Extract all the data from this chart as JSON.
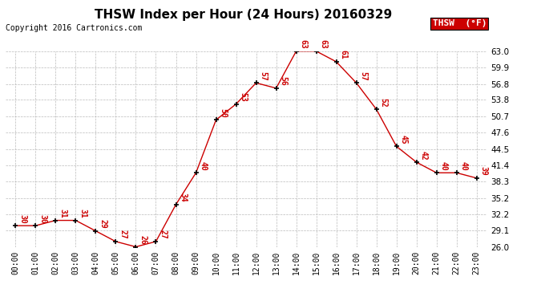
{
  "title": "THSW Index per Hour (24 Hours) 20160329",
  "copyright": "Copyright 2016 Cartronics.com",
  "legend_label": "THSW  (°F)",
  "hours": [
    0,
    1,
    2,
    3,
    4,
    5,
    6,
    7,
    8,
    9,
    10,
    11,
    12,
    13,
    14,
    15,
    16,
    17,
    18,
    19,
    20,
    21,
    22,
    23
  ],
  "values": [
    30,
    30,
    31,
    31,
    29,
    27,
    26,
    27,
    34,
    40,
    50,
    53,
    57,
    56,
    63,
    63,
    61,
    57,
    52,
    45,
    42,
    40,
    40,
    39
  ],
  "ylim": [
    26.0,
    63.0
  ],
  "yticks": [
    26.0,
    29.1,
    32.2,
    35.2,
    38.3,
    41.4,
    44.5,
    47.6,
    50.7,
    53.8,
    56.8,
    59.9,
    63.0
  ],
  "line_color": "#cc0000",
  "marker_color": "#000000",
  "background_color": "#ffffff",
  "grid_color": "#bbbbbb",
  "title_fontsize": 11,
  "copyright_fontsize": 7,
  "annotation_fontsize": 7,
  "legend_bg": "#cc0000",
  "legend_text_color": "#ffffff",
  "ytick_fontsize": 7.5,
  "xtick_fontsize": 7
}
